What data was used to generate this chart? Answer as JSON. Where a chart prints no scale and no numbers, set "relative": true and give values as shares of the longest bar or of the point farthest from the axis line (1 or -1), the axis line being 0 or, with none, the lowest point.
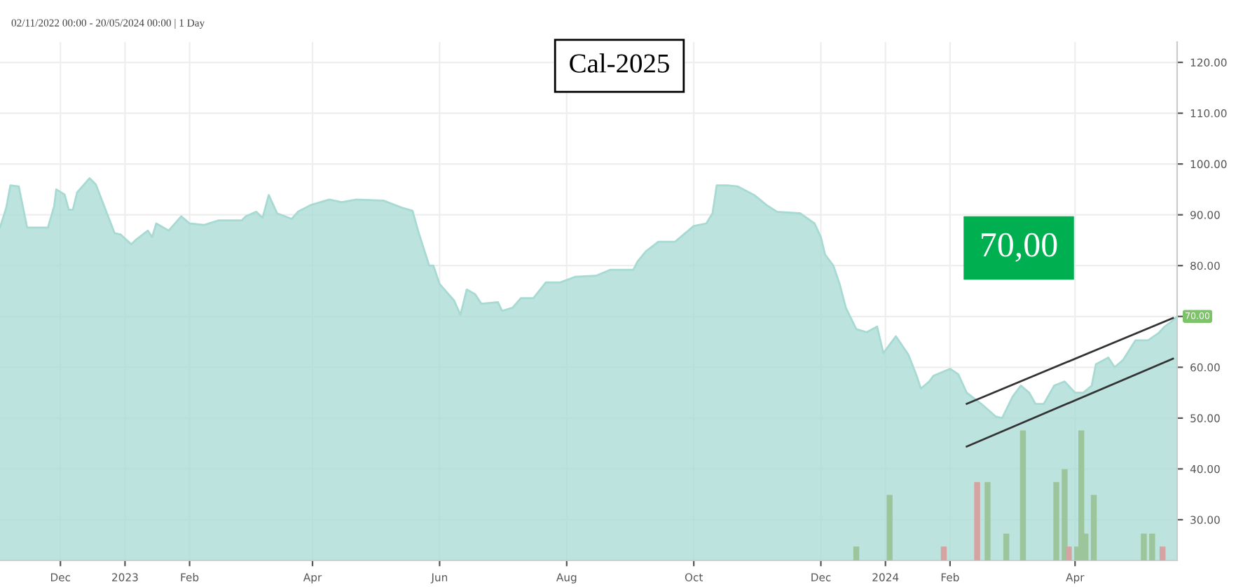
{
  "chart_data": [
    {
      "type": "area",
      "title": "Cal-2025",
      "subtitle": "02/11/2022 00:00 - 20/05/2024 00:00 | 1 Day",
      "annotations": [
        "70,00",
        {
          "text": "70.00",
          "x": "2024-05-20",
          "y": 70
        }
      ],
      "xlim": [
        "2022-11-02",
        "2024-05-20"
      ],
      "ylim": [
        22,
        124
      ],
      "xticks": [
        {
          "value": "2022-12-01",
          "label": "Dec"
        },
        {
          "value": "2023-01-01",
          "label": "2023"
        },
        {
          "value": "2023-02-01",
          "label": "Feb"
        },
        {
          "value": "2023-04-01",
          "label": "Apr"
        },
        {
          "value": "2023-06-01",
          "label": "Jun"
        },
        {
          "value": "2023-08-01",
          "label": "Aug"
        },
        {
          "value": "2023-10-01",
          "label": "Oct"
        },
        {
          "value": "2023-12-01",
          "label": "Dec"
        },
        {
          "value": "2024-01-01",
          "label": "2024"
        },
        {
          "value": "2024-02-01",
          "label": "Feb"
        },
        {
          "value": "2024-04-01",
          "label": "Apr"
        }
      ],
      "yticks": [
        {
          "value": 30,
          "label": "30.00"
        },
        {
          "value": 40,
          "label": "40.00"
        },
        {
          "value": 50,
          "label": "50.00"
        },
        {
          "value": 60,
          "label": "60.00"
        },
        {
          "value": 70,
          "label": null
        },
        {
          "value": 80,
          "label": "80.00"
        },
        {
          "value": 90,
          "label": "90.00"
        },
        {
          "value": 100,
          "label": "100.00"
        },
        {
          "value": 110,
          "label": "110.00"
        },
        {
          "value": 120,
          "label": "120.00"
        }
      ],
      "grid": true,
      "series": [
        {
          "type": "area",
          "color": "#a6dad3",
          "x": [
            "2022-11-02",
            "2022-11-05",
            "2022-11-07",
            "2022-11-11",
            "2022-11-15",
            "2022-11-25",
            "2022-11-28",
            "2022-11-29",
            "2022-12-03",
            "2022-12-05",
            "2022-12-07",
            "2022-12-09",
            "2022-12-15",
            "2022-12-18",
            "2022-12-22",
            "2022-12-27",
            "2022-12-30",
            "2023-01-04",
            "2023-01-06",
            "2023-01-12",
            "2023-01-14",
            "2023-01-16",
            "2023-01-22",
            "2023-01-28",
            "2023-02-01",
            "2023-02-08",
            "2023-02-15",
            "2023-02-26",
            "2023-02-28",
            "2023-03-05",
            "2023-03-08",
            "2023-03-11",
            "2023-03-15",
            "2023-03-22",
            "2023-03-25",
            "2023-03-31",
            "2023-04-09",
            "2023-04-15",
            "2023-04-22",
            "2023-05-05",
            "2023-05-14",
            "2023-05-19",
            "2023-05-22",
            "2023-05-27",
            "2023-05-29",
            "2023-06-01",
            "2023-06-08",
            "2023-06-11",
            "2023-06-14",
            "2023-06-18",
            "2023-06-21",
            "2023-06-29",
            "2023-07-01",
            "2023-07-06",
            "2023-07-10",
            "2023-07-16",
            "2023-07-22",
            "2023-07-29",
            "2023-08-05",
            "2023-08-15",
            "2023-08-22",
            "2023-09-02",
            "2023-09-04",
            "2023-09-08",
            "2023-09-14",
            "2023-09-22",
            "2023-10-01",
            "2023-10-07",
            "2023-10-10",
            "2023-10-12",
            "2023-10-17",
            "2023-10-22",
            "2023-10-30",
            "2023-11-05",
            "2023-11-10",
            "2023-11-21",
            "2023-11-28",
            "2023-12-01",
            "2023-12-03",
            "2023-12-07",
            "2023-12-10",
            "2023-12-13",
            "2023-12-18",
            "2023-12-23",
            "2023-12-28",
            "2023-12-31",
            "2024-01-06",
            "2024-01-12",
            "2024-01-16",
            "2024-01-18",
            "2024-01-22",
            "2024-01-24",
            "2024-02-01",
            "2024-02-05",
            "2024-02-09",
            "2024-02-16",
            "2024-02-23",
            "2024-02-26",
            "2024-03-02",
            "2024-03-06",
            "2024-03-10",
            "2024-03-13",
            "2024-03-17",
            "2024-03-22",
            "2024-03-27",
            "2024-04-01",
            "2024-04-05",
            "2024-04-09",
            "2024-04-11",
            "2024-04-17",
            "2024-04-20",
            "2024-04-24",
            "2024-04-30",
            "2024-05-06",
            "2024-05-11",
            "2024-05-14",
            "2024-05-17",
            "2024-05-20"
          ],
          "values": [
            87.5,
            91.4,
            95.8,
            95.6,
            87.5,
            87.5,
            91.7,
            95,
            94,
            91,
            91,
            94.4,
            97.2,
            96,
            91.7,
            86.4,
            86.1,
            84.2,
            85,
            86.9,
            85.6,
            88.3,
            86.9,
            89.7,
            88.3,
            88,
            88.9,
            88.9,
            89.7,
            90.6,
            89.4,
            93.9,
            90.3,
            89.2,
            90.6,
            91.9,
            93,
            92.5,
            93,
            92.8,
            91.4,
            90.8,
            86.4,
            80,
            80,
            76.4,
            73.1,
            70.3,
            75.3,
            74.4,
            72.5,
            72.8,
            71.1,
            71.7,
            73.6,
            73.6,
            76.7,
            76.7,
            77.8,
            78,
            79.2,
            79.2,
            80.8,
            82.8,
            84.7,
            84.7,
            87.8,
            88.3,
            90.3,
            95.8,
            95.8,
            95.6,
            93.9,
            91.9,
            90.6,
            90.3,
            88.3,
            85.6,
            82.2,
            80,
            76.4,
            71.7,
            67.5,
            66.9,
            68,
            62.8,
            66.1,
            62.5,
            58.3,
            55.8,
            57.2,
            58.3,
            59.7,
            58.6,
            55,
            52.8,
            50.3,
            50,
            54.2,
            56.4,
            55,
            52.8,
            52.8,
            56.4,
            57.2,
            55,
            55,
            56.4,
            60.6,
            61.9,
            60,
            61.4,
            65.3,
            65.3,
            66.7,
            68,
            68.9,
            70
          ]
        },
        {
          "type": "line",
          "color": "#333333",
          "x": [
            "2024-02-09",
            "2024-05-18"
          ],
          "values": [
            52.8,
            69.7
          ]
        },
        {
          "type": "line",
          "color": "#333333",
          "x": [
            "2024-02-09",
            "2024-05-18"
          ],
          "values": [
            44.4,
            61.7
          ]
        }
      ]
    },
    {
      "type": "bar",
      "relative": true,
      "tick_labels": false,
      "xlim": [
        "2022-11-02",
        "2024-05-20"
      ],
      "x": [
        "2023-12-18",
        "2024-01-03",
        "2024-01-29",
        "2024-02-14",
        "2024-02-19",
        "2024-02-28",
        "2024-03-07",
        "2024-03-23",
        "2024-03-27",
        "2024-03-29",
        "2024-04-02",
        "2024-04-04",
        "2024-04-06",
        "2024-04-10",
        "2024-05-04",
        "2024-05-08",
        "2024-05-13"
      ],
      "values": [
        0.1,
        0.5,
        0.1,
        0.6,
        0.6,
        0.2,
        1,
        0.6,
        0.7,
        0.1,
        0.1,
        1,
        0.2,
        0.5,
        0.2,
        0.2,
        0.1
      ],
      "colors": [
        "#9cc59c",
        "#9cc59c",
        "#d6a3a3",
        "#d6a3a3",
        "#9cc59c",
        "#9cc59c",
        "#9cc59c",
        "#9cc59c",
        "#9cc59c",
        "#d6a3a3",
        "#9cc59c",
        "#9cc59c",
        "#9cc59c",
        "#9cc59c",
        "#9cc59c",
        "#9cc59c",
        "#d6a3a3"
      ]
    }
  ]
}
